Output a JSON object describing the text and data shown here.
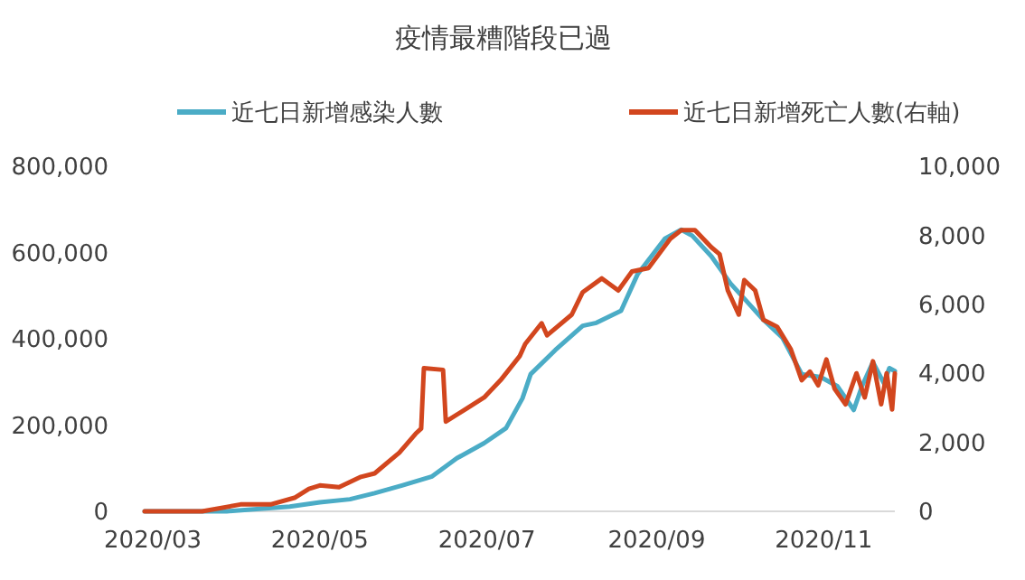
{
  "chart_data": {
    "type": "line",
    "title": "疫情最糟階段已過",
    "legend": "top",
    "grid": false,
    "line_style": "solid",
    "marker": "none",
    "xlim": [
      "2020-02-27",
      "2020-11-27"
    ],
    "xticks": [
      {
        "value": "2020-03-01",
        "label": "2020/03"
      },
      {
        "value": "2020-05-01",
        "label": "2020/05"
      },
      {
        "value": "2020-07-01",
        "label": "2020/07"
      },
      {
        "value": "2020-09-01",
        "label": "2020/09"
      },
      {
        "value": "2020-11-01",
        "label": "2020/11"
      }
    ],
    "ylim": [
      0,
      800000
    ],
    "yticks": [
      {
        "value": 0,
        "label": "0"
      },
      {
        "value": 200000,
        "label": "200,000"
      },
      {
        "value": 400000,
        "label": "400,000"
      },
      {
        "value": 600000,
        "label": "600,000"
      },
      {
        "value": 800000,
        "label": "800,000"
      }
    ],
    "y2lim": [
      0,
      10000
    ],
    "y2ticks": [
      {
        "value": 0,
        "label": "0"
      },
      {
        "value": 2000,
        "label": "2,000"
      },
      {
        "value": 4000,
        "label": "4,000"
      },
      {
        "value": 6000,
        "label": "6,000"
      },
      {
        "value": 8000,
        "label": "8,000"
      },
      {
        "value": 10000,
        "label": "10,000"
      }
    ],
    "series": [
      {
        "name": "近七日新增感染人數",
        "color": "#4bacc6",
        "x": [
          "2020-02-27",
          "2020-03-28",
          "2020-04-20",
          "2020-05-01",
          "2020-05-12",
          "2020-05-21",
          "2020-05-31",
          "2020-06-11",
          "2020-06-20",
          "2020-06-30",
          "2020-07-08",
          "2020-07-14",
          "2020-07-17",
          "2020-07-26",
          "2020-08-05",
          "2020-08-10",
          "2020-08-19",
          "2020-08-25",
          "2020-09-04",
          "2020-09-10",
          "2020-09-14",
          "2020-09-21",
          "2020-09-28",
          "2020-10-04",
          "2020-10-10",
          "2020-10-17",
          "2020-10-24",
          "2020-10-31",
          "2020-11-06",
          "2020-11-12",
          "2020-11-15",
          "2020-11-19",
          "2020-11-23",
          "2020-11-25",
          "2020-11-27"
        ],
        "values": [
          0,
          0,
          11000,
          21000,
          28000,
          42000,
          60000,
          81000,
          123000,
          158000,
          193000,
          262000,
          318000,
          374000,
          430000,
          437000,
          465000,
          549000,
          632000,
          653000,
          639000,
          591000,
          528000,
          486000,
          444000,
          402000,
          318000,
          311000,
          290000,
          235000,
          290000,
          346000,
          297000,
          332000,
          325000
        ]
      },
      {
        "name": "近七日新增死亡人數(右軸)",
        "color": "#d2461e",
        "axis": "y2",
        "x": [
          "2020-02-27",
          "2020-03-19",
          "2020-04-02",
          "2020-04-13",
          "2020-04-22",
          "2020-04-27",
          "2020-05-01",
          "2020-05-08",
          "2020-05-16",
          "2020-05-21",
          "2020-05-30",
          "2020-06-05",
          "2020-06-07",
          "2020-06-08",
          "2020-06-15",
          "2020-06-16",
          "2020-06-23",
          "2020-06-30",
          "2020-07-06",
          "2020-07-13",
          "2020-07-15",
          "2020-07-21",
          "2020-07-23",
          "2020-08-01",
          "2020-08-05",
          "2020-08-12",
          "2020-08-18",
          "2020-08-23",
          "2020-08-29",
          "2020-09-06",
          "2020-09-10",
          "2020-09-15",
          "2020-09-21",
          "2020-09-24",
          "2020-09-27",
          "2020-10-01",
          "2020-10-03",
          "2020-10-07",
          "2020-10-10",
          "2020-10-15",
          "2020-10-20",
          "2020-10-24",
          "2020-10-27",
          "2020-10-30",
          "2020-11-02",
          "2020-11-05",
          "2020-11-09",
          "2020-11-13",
          "2020-11-16",
          "2020-11-19",
          "2020-11-22",
          "2020-11-24",
          "2020-11-26",
          "2020-11-27"
        ],
        "values": [
          0,
          0,
          200,
          200,
          400,
          650,
          750,
          700,
          1000,
          1100,
          1700,
          2250,
          2400,
          4150,
          4100,
          2600,
          2950,
          3300,
          3800,
          4500,
          4850,
          5450,
          5100,
          5700,
          6350,
          6750,
          6400,
          6950,
          7050,
          7900,
          8150,
          8150,
          7650,
          7450,
          6400,
          5700,
          6700,
          6400,
          5550,
          5350,
          4700,
          3800,
          4050,
          3650,
          4400,
          3550,
          3100,
          4000,
          3300,
          4350,
          3100,
          4000,
          2950,
          4000
        ]
      }
    ]
  }
}
